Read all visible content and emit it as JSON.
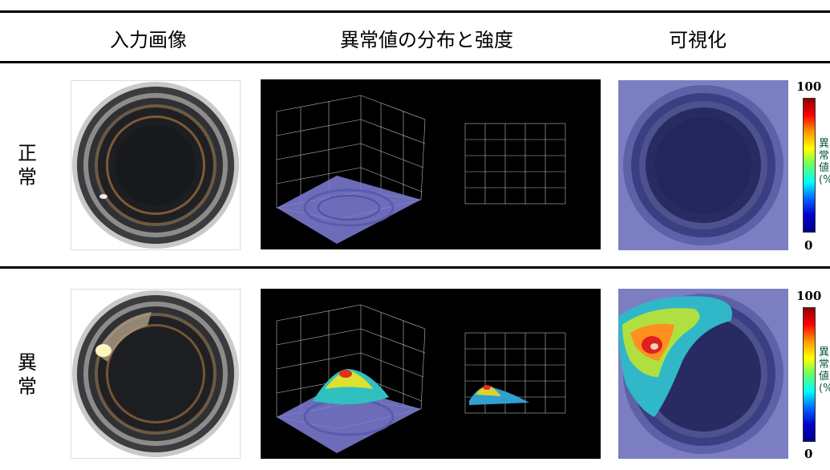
{
  "headers": {
    "input": "入力画像",
    "distribution": "異常値の分布と強度",
    "visualization": "可視化"
  },
  "rows": [
    {
      "label": "正常"
    },
    {
      "label": "異常"
    }
  ],
  "colorbar": {
    "max": "100",
    "min": "0",
    "label_chars": [
      "異",
      "常",
      "値",
      "(%"
    ]
  }
}
